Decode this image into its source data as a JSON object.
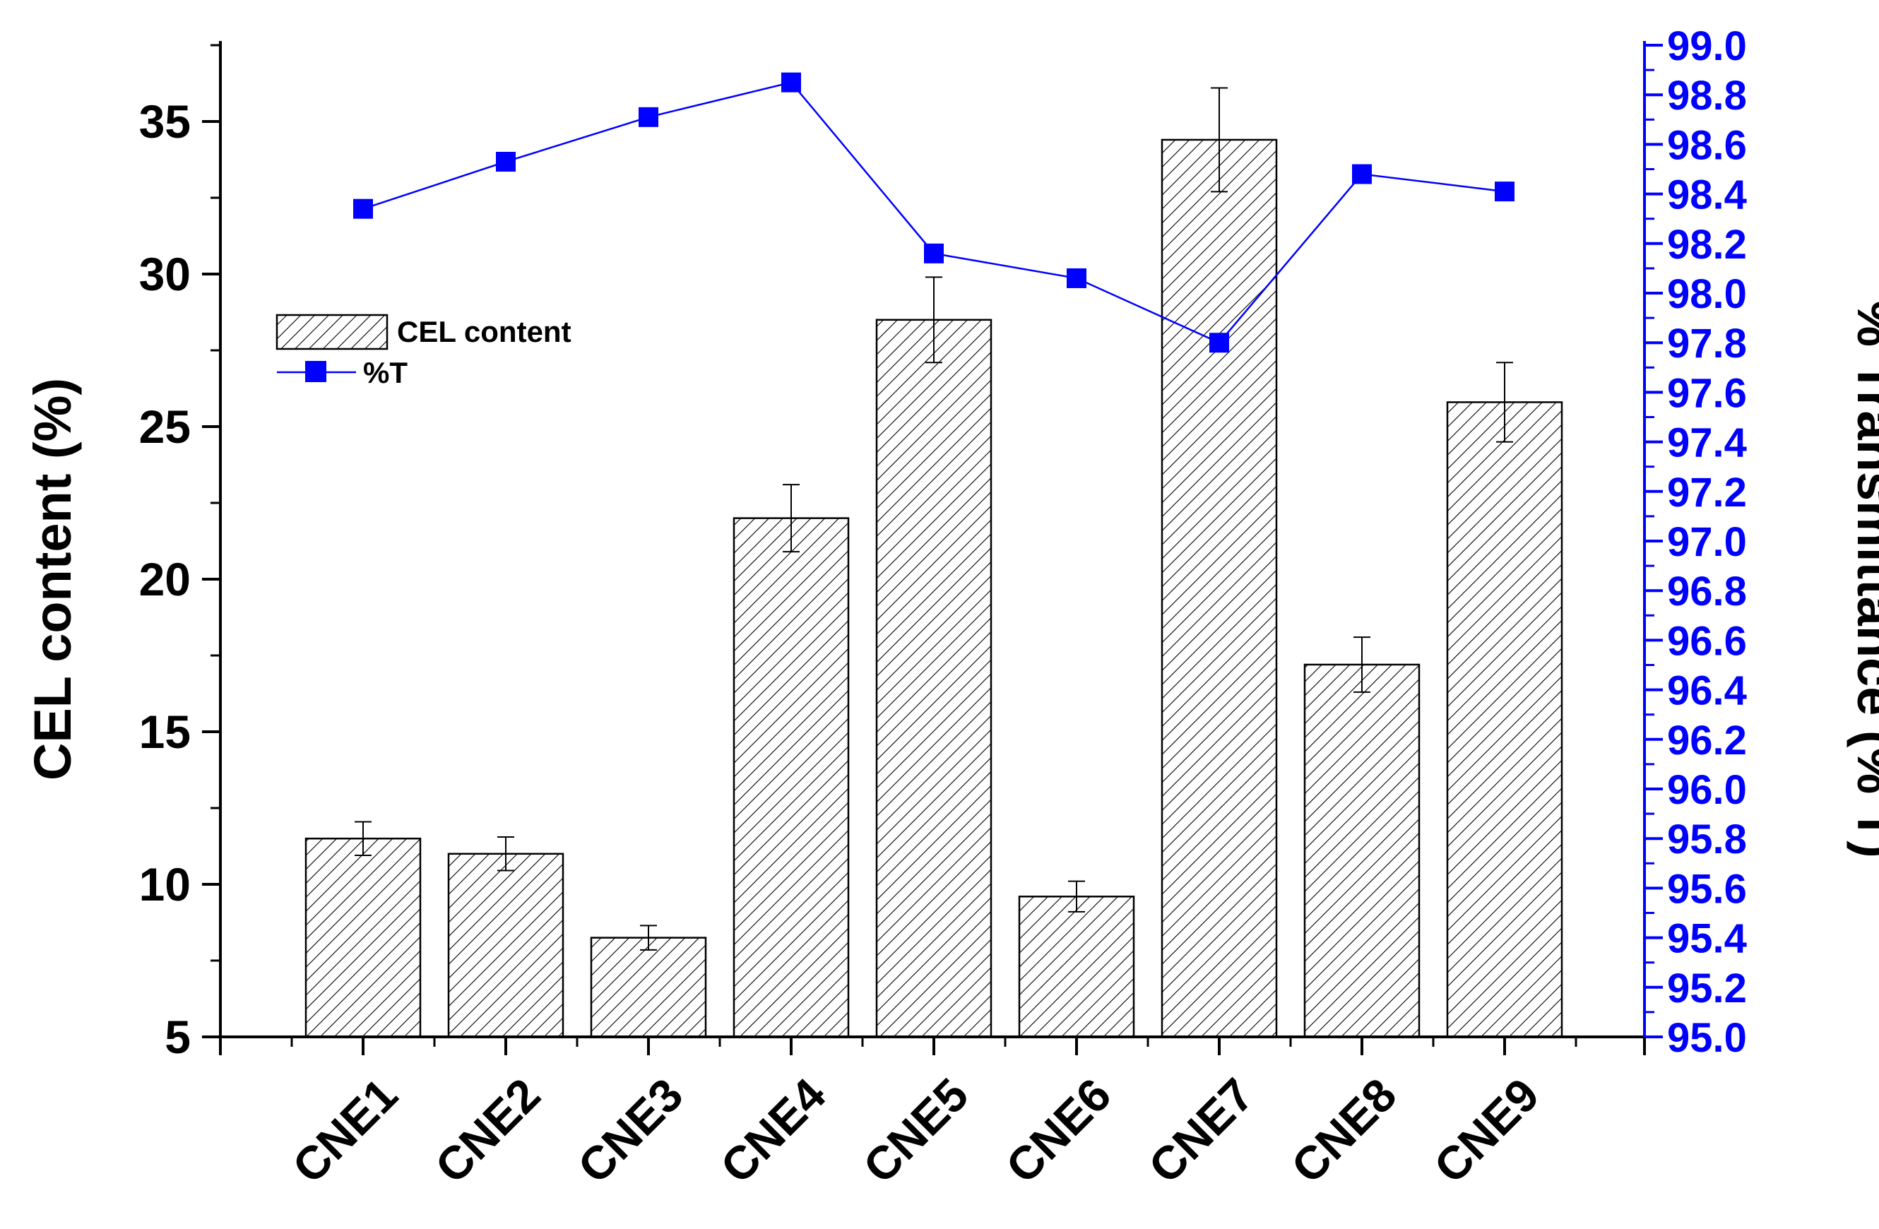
{
  "chart_data": {
    "type": "bar",
    "categories": [
      "CNE1",
      "CNE2",
      "CNE3",
      "CNE4",
      "CNE5",
      "CNE6",
      "CNE7",
      "CNE8",
      "CNE9"
    ],
    "series": [
      {
        "name": "CEL content",
        "type": "bar",
        "axis": "left",
        "values": [
          11.5,
          11.0,
          8.25,
          22.0,
          28.5,
          9.6,
          34.4,
          17.2,
          25.8
        ],
        "errors": [
          0.55,
          0.55,
          0.4,
          1.1,
          1.4,
          0.5,
          1.7,
          0.9,
          1.3
        ],
        "fill_pattern": "diagonal-hatch",
        "color": "#000000"
      },
      {
        "name": "%T",
        "type": "line",
        "axis": "right",
        "marker": "square",
        "values": [
          98.34,
          98.53,
          98.71,
          98.85,
          98.16,
          98.06,
          97.8,
          98.48,
          98.41
        ],
        "errors": [
          0.03,
          0.03,
          0.03,
          0.03,
          0.03,
          0.03,
          0.03,
          0.03,
          0.03
        ],
        "color": "#0000ff"
      }
    ],
    "ylabel": "CEL content (%)",
    "y2label": "% Transmittance (% T)",
    "xlabel": "",
    "ylim": [
      5,
      37.5
    ],
    "y2lim": [
      95.0,
      99.0
    ],
    "yticks": [
      "5",
      "10",
      "15",
      "20",
      "25",
      "30",
      "35"
    ],
    "y2ticks": [
      "95.0",
      "95.2",
      "95.4",
      "95.6",
      "95.8",
      "96.0",
      "96.2",
      "96.4",
      "96.6",
      "96.8",
      "97.0",
      "97.2",
      "97.4",
      "97.6",
      "97.8",
      "98.0",
      "98.2",
      "98.4",
      "98.6",
      "98.8",
      "99.0"
    ],
    "legend_position": "upper-left",
    "grid": false,
    "left_axis_color": "#000000",
    "right_axis_color": "#0000ff"
  }
}
